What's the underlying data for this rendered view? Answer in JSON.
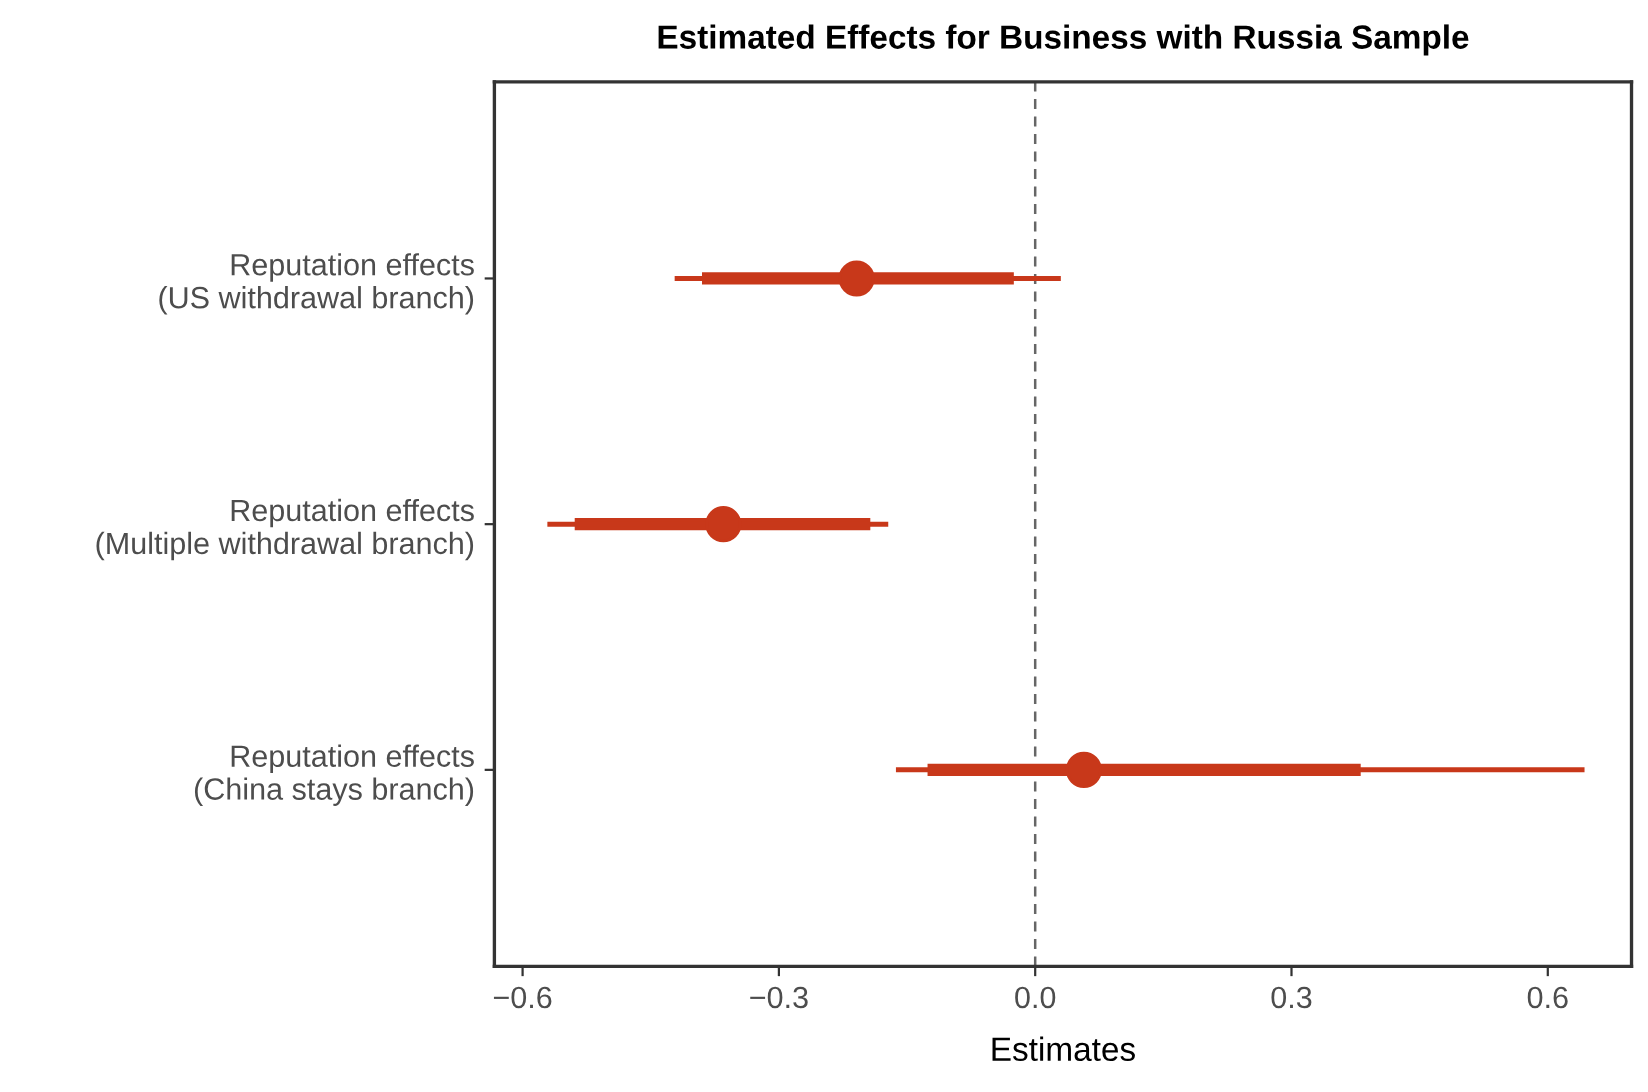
{
  "chart_data": {
    "type": "scatter",
    "title": "Estimated Effects for Business with Russia Sample",
    "xlabel": "Estimates",
    "orientation": "horizontal",
    "categories": [
      "Reputation effects\n(US withdrawal branch)",
      "Reputation effects\n(Multiple withdrawal branch)",
      "Reputation effects\n(China stays branch)"
    ],
    "series": [
      {
        "color": "#c8381a",
        "marker": "circle",
        "values": [
          -0.209,
          -0.365,
          0.057
        ],
        "errors": [
          [
            -0.422,
            0.03
          ],
          [
            -0.571,
            -0.172
          ],
          [
            -0.163,
            0.643
          ]
        ],
        "lower": [
          -0.39,
          -0.539,
          -0.126
        ],
        "upper": [
          -0.025,
          -0.193,
          0.381
        ]
      }
    ],
    "xlim": [
      -0.633,
      0.698
    ],
    "xticks": [
      {
        "value": -0.6,
        "label": "−0.6"
      },
      {
        "value": -0.3,
        "label": "−0.3"
      },
      {
        "value": 0,
        "label": "0.0"
      },
      {
        "value": 0.3,
        "label": "0.3"
      },
      {
        "value": 0.6,
        "label": "0.6"
      }
    ],
    "ref_lines": [
      {
        "axis": "x",
        "value": 0,
        "color": "#666666",
        "line_style": "dashed"
      }
    ],
    "grid": false,
    "legend": false
  }
}
